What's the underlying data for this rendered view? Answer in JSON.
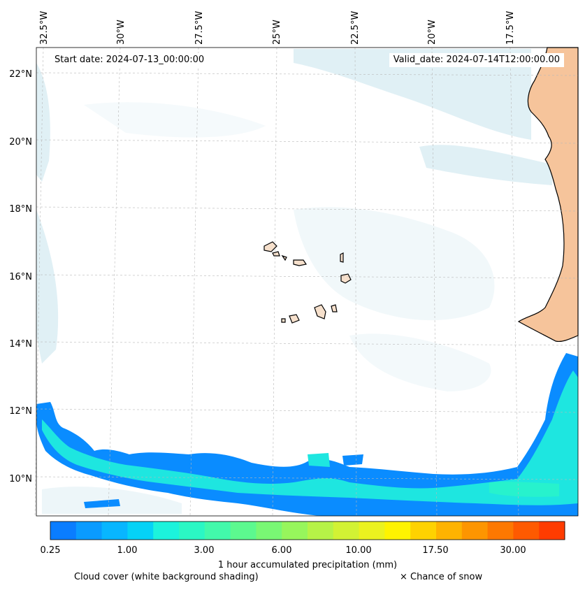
{
  "header": {
    "start_date": "Start date: 2024-07-13_00:00:00",
    "valid_date": "Valid_date: 2024-07-14T12:00:00.00"
  },
  "axes": {
    "lon_labels": [
      "32.5°W",
      "30°W",
      "27.5°W",
      "25°W",
      "22.5°W",
      "20°W",
      "17.5°W"
    ],
    "lat_labels": [
      "22°N",
      "20°N",
      "18°N",
      "16°N",
      "14°N",
      "12°N",
      "10°N"
    ]
  },
  "colorbar": {
    "ticks": [
      "0.25",
      "1.00",
      "3.00",
      "6.00",
      "10.00",
      "17.50",
      "30.00"
    ],
    "label": "1 hour accumulated precipitation (mm)",
    "colors": [
      "#0a7dff",
      "#0a9bff",
      "#08b6ff",
      "#05d2f6",
      "#1cf3dc",
      "#2bf7c4",
      "#42f9ab",
      "#5cf98f",
      "#79f874",
      "#97f65c",
      "#b6f347",
      "#d2f234",
      "#ebf21f",
      "#fef300",
      "#fed200",
      "#feb300",
      "#fd9500",
      "#fd7800",
      "#fe5a00",
      "#ff3c00"
    ]
  },
  "footer": {
    "cloud_note": "Cloud cover (white background shading)",
    "snow_note": "× Chance of snow"
  },
  "colors": {
    "precip_blue": "#0a8cff",
    "precip_cyan": "#1ee6e0",
    "cloud": "#d6ebf2",
    "land": "#f6c49b"
  }
}
